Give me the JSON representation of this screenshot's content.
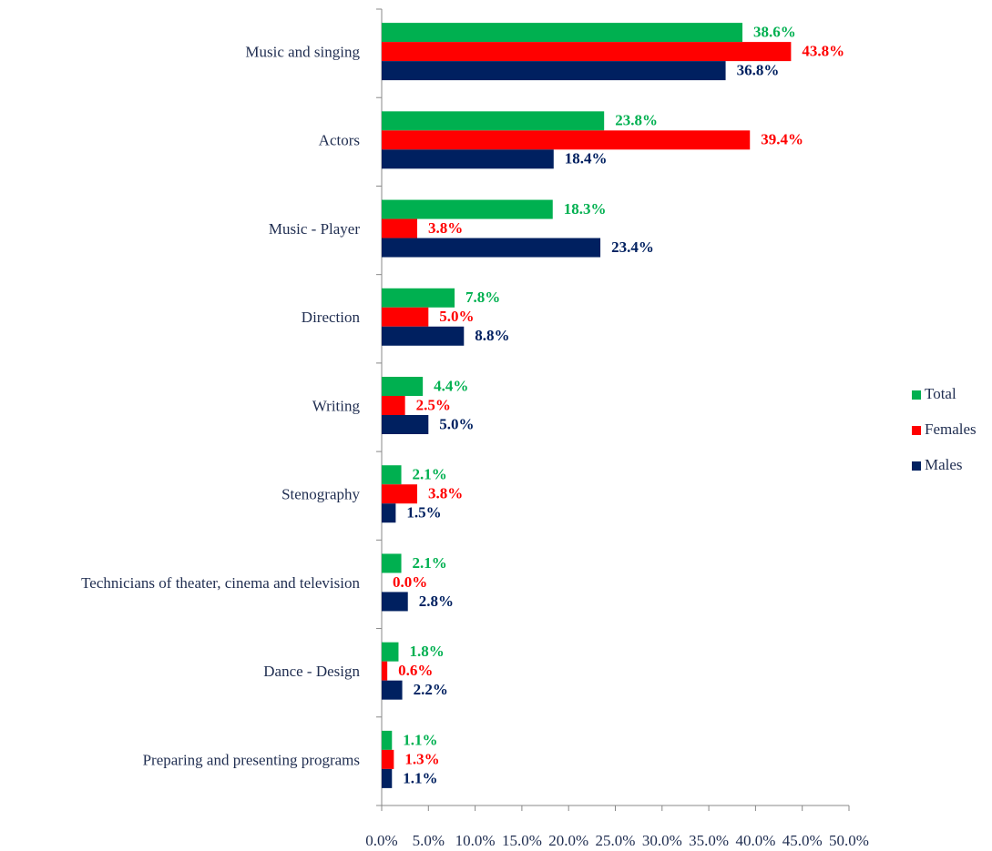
{
  "chart_data": {
    "type": "hbar",
    "categories": [
      "Music and singing",
      "Actors",
      "Music - Player",
      "Direction",
      "Writing",
      "Stenography",
      "Technicians of theater, cinema and television",
      "Dance - Design",
      "Preparing and presenting programs"
    ],
    "series": [
      {
        "name": "Total",
        "color": "#00b050",
        "values": [
          38.6,
          23.8,
          18.3,
          7.8,
          4.4,
          2.1,
          2.1,
          1.8,
          1.1
        ],
        "value_labels": [
          "38.6%",
          "23.8%",
          "18.3%",
          "7.8%",
          "4.4%",
          "2.1%",
          "2.1%",
          "1.8%",
          "1.1%"
        ]
      },
      {
        "name": "Females",
        "color": "#ff0000",
        "values": [
          43.8,
          39.4,
          3.8,
          5.0,
          2.5,
          3.8,
          0.0,
          0.6,
          1.3
        ],
        "value_labels": [
          "43.8%",
          "39.4%",
          "3.8%",
          "5.0%",
          "2.5%",
          "3.8%",
          "0.0%",
          "0.6%",
          "1.3%"
        ]
      },
      {
        "name": "Males",
        "color": "#002060",
        "values": [
          36.8,
          18.4,
          23.4,
          8.8,
          5.0,
          1.5,
          2.8,
          2.2,
          1.1
        ],
        "value_labels": [
          "36.8%",
          "18.4%",
          "23.4%",
          "8.8%",
          "5.0%",
          "1.5%",
          "2.8%",
          "2.2%",
          "1.1%"
        ]
      }
    ],
    "xlim": [
      0,
      50
    ],
    "xticks": [
      {
        "value": 0,
        "label": "0.0%"
      },
      {
        "value": 5,
        "label": "5.0%"
      },
      {
        "value": 10,
        "label": "10.0%"
      },
      {
        "value": 15,
        "label": "15.0%"
      },
      {
        "value": 20,
        "label": "20.0%"
      },
      {
        "value": 25,
        "label": "25.0%"
      },
      {
        "value": 30,
        "label": "30.0%"
      },
      {
        "value": 35,
        "label": "35.0%"
      },
      {
        "value": 40,
        "label": "40.0%"
      },
      {
        "value": 45,
        "label": "45.0%"
      },
      {
        "value": 50,
        "label": "50.0%"
      }
    ],
    "legend": "right"
  }
}
